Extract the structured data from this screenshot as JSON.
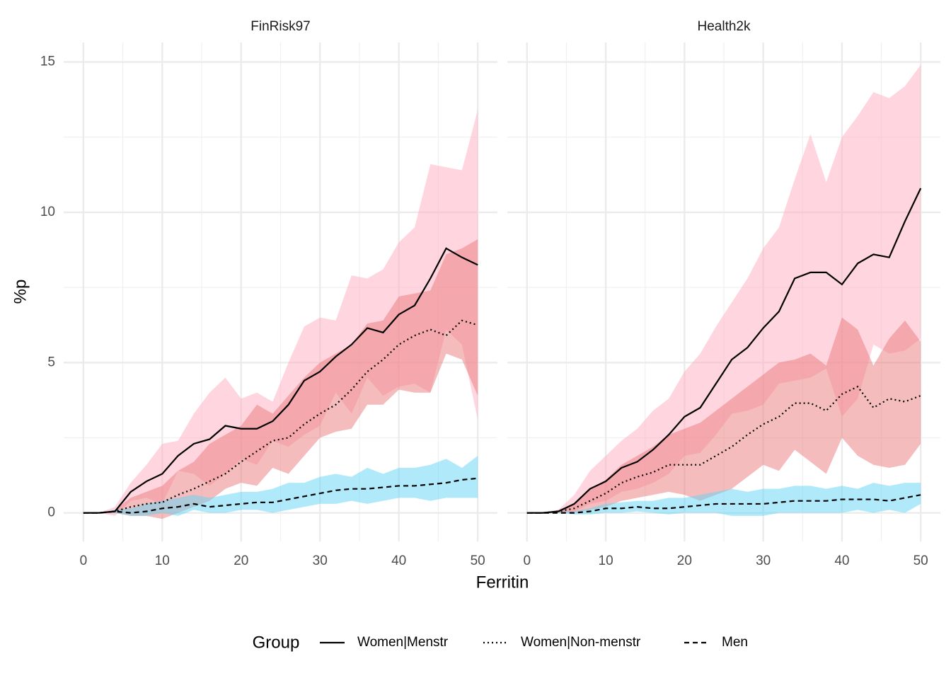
{
  "chart_data": {
    "type": "line",
    "xlabel": "Ferritin",
    "ylabel": "%p",
    "legend_title": "Group",
    "legend_position": "bottom",
    "grid": true,
    "xlim": [
      -2.5,
      52.5
    ],
    "ylim": [
      -0.95,
      15.65
    ],
    "xticks": [
      0,
      10,
      20,
      30,
      40,
      50
    ],
    "yticks": [
      0,
      5,
      10,
      15
    ],
    "xminor": [
      5,
      15,
      25,
      35,
      45
    ],
    "yminor": [
      2.5,
      7.5,
      12.5
    ],
    "x": [
      0,
      2,
      4,
      6,
      8,
      10,
      12,
      14,
      16,
      18,
      20,
      22,
      24,
      26,
      28,
      30,
      32,
      34,
      36,
      38,
      40,
      42,
      44,
      46,
      48,
      50
    ],
    "series": [
      {
        "name": "Women|Menstr",
        "linetype": "solid",
        "color": "#000000",
        "band_color": "#ffabc0"
      },
      {
        "name": "Women|Non-menstr",
        "linetype": "dotted",
        "color": "#000000",
        "band_color": "#e97979"
      },
      {
        "name": "Men",
        "linetype": "dashed",
        "color": "#000000",
        "band_color": "#61d5f5"
      }
    ],
    "panels": [
      {
        "title": "FinRisk97",
        "series": [
          {
            "values": [
              0,
              0,
              0.05,
              0.7,
              1.05,
              1.3,
              1.9,
              2.3,
              2.45,
              2.9,
              2.8,
              2.8,
              3.05,
              3.6,
              4.4,
              4.7,
              5.2,
              5.6,
              6.15,
              6.0,
              6.6,
              6.9,
              7.8,
              8.8,
              8.5,
              8.25
            ],
            "upper": [
              0,
              0,
              0.2,
              1.0,
              1.6,
              2.3,
              2.4,
              3.3,
              4.0,
              4.5,
              3.8,
              4.0,
              3.7,
              5.0,
              6.2,
              6.5,
              6.4,
              7.9,
              7.8,
              8.1,
              9.0,
              9.5,
              11.6,
              11.5,
              11.4,
              13.4
            ],
            "lower": [
              0,
              0,
              -0.1,
              0.4,
              0.5,
              0.3,
              1.4,
              1.3,
              0.9,
              1.3,
              1.8,
              1.6,
              2.4,
              2.2,
              2.6,
              2.9,
              4.0,
              3.3,
              4.5,
              3.9,
              4.2,
              4.3,
              4.0,
              6.1,
              5.6,
              3.1
            ]
          },
          {
            "values": [
              0,
              0,
              0.05,
              0.2,
              0.3,
              0.35,
              0.6,
              0.8,
              1.05,
              1.3,
              1.7,
              2.05,
              2.4,
              2.5,
              2.95,
              3.3,
              3.6,
              4.1,
              4.7,
              5.1,
              5.6,
              5.9,
              6.1,
              5.9,
              6.4,
              6.25
            ],
            "upper": [
              0,
              0,
              0.1,
              0.5,
              0.7,
              0.9,
              1.4,
              1.7,
              2.3,
              2.6,
              2.9,
              3.6,
              3.3,
              3.9,
              4.5,
              5.0,
              5.3,
              5.6,
              6.3,
              6.4,
              7.2,
              7.3,
              7.4,
              8.6,
              8.8,
              9.1
            ],
            "lower": [
              0,
              0,
              0,
              -0.1,
              -0.1,
              -0.2,
              0.0,
              0.2,
              0.4,
              0.8,
              1.0,
              0.9,
              1.5,
              1.3,
              1.9,
              2.5,
              2.7,
              2.8,
              3.6,
              3.6,
              4.1,
              4.0,
              4.0,
              5.3,
              5.1,
              3.9
            ]
          },
          {
            "values": [
              0,
              0,
              0.05,
              0.0,
              0.05,
              0.15,
              0.2,
              0.3,
              0.2,
              0.25,
              0.3,
              0.35,
              0.35,
              0.45,
              0.55,
              0.65,
              0.75,
              0.8,
              0.8,
              0.85,
              0.9,
              0.9,
              0.95,
              1.0,
              1.1,
              1.15
            ],
            "upper": [
              0,
              0,
              0.1,
              0.15,
              0.3,
              0.4,
              0.5,
              0.6,
              0.5,
              0.6,
              0.7,
              0.7,
              0.8,
              1.0,
              1.0,
              1.2,
              1.3,
              1.2,
              1.5,
              1.3,
              1.5,
              1.5,
              1.6,
              1.8,
              1.5,
              1.9
            ],
            "lower": [
              0,
              0,
              0,
              -0.1,
              -0.1,
              0.0,
              -0.1,
              0.1,
              0.0,
              0.0,
              0.1,
              0.1,
              0.0,
              0.1,
              0.2,
              0.3,
              0.3,
              0.4,
              0.3,
              0.4,
              0.5,
              0.5,
              0.4,
              0.5,
              0.5,
              0.5
            ]
          }
        ]
      },
      {
        "title": "Health2k",
        "series": [
          {
            "values": [
              0,
              0,
              0.05,
              0.3,
              0.8,
              1.05,
              1.5,
              1.7,
              2.1,
              2.6,
              3.2,
              3.5,
              4.3,
              5.1,
              5.5,
              6.15,
              6.7,
              7.8,
              8.0,
              8.0,
              7.6,
              8.3,
              8.6,
              8.5,
              9.7,
              10.8
            ],
            "upper": [
              0,
              0,
              0.1,
              0.6,
              1.4,
              1.9,
              2.4,
              2.8,
              3.4,
              3.8,
              4.7,
              5.3,
              6.2,
              7.0,
              7.8,
              8.8,
              9.5,
              11.1,
              12.6,
              11.0,
              12.5,
              13.2,
              14.0,
              13.8,
              14.2,
              14.9
            ],
            "lower": [
              0,
              0,
              0,
              0.05,
              0.3,
              0.4,
              0.7,
              0.8,
              1.0,
              1.3,
              1.9,
              2.0,
              2.6,
              3.3,
              3.4,
              3.6,
              4.3,
              4.4,
              4.5,
              4.8,
              3.2,
              3.8,
              5.6,
              5.3,
              5.4,
              5.8
            ]
          },
          {
            "values": [
              0,
              0,
              0.05,
              0.15,
              0.4,
              0.65,
              1.0,
              1.2,
              1.35,
              1.6,
              1.6,
              1.6,
              1.9,
              2.2,
              2.6,
              2.95,
              3.2,
              3.65,
              3.65,
              3.4,
              3.95,
              4.2,
              3.5,
              3.8,
              3.7,
              3.9
            ],
            "upper": [
              0,
              0,
              0.1,
              0.3,
              0.8,
              1.1,
              1.6,
              1.9,
              2.2,
              2.6,
              2.8,
              3.0,
              3.4,
              3.8,
              4.2,
              4.6,
              5.0,
              5.1,
              5.3,
              4.9,
              6.5,
              6.1,
              4.9,
              5.8,
              6.4,
              5.7
            ],
            "lower": [
              0,
              0,
              0,
              0.0,
              0.1,
              0.2,
              0.4,
              0.5,
              0.6,
              0.7,
              0.6,
              0.4,
              0.6,
              0.8,
              1.2,
              1.6,
              1.4,
              2.1,
              1.7,
              1.3,
              2.5,
              1.9,
              1.6,
              1.5,
              1.6,
              2.3
            ]
          },
          {
            "values": [
              0,
              0,
              0.0,
              0.0,
              0.05,
              0.15,
              0.15,
              0.2,
              0.15,
              0.15,
              0.2,
              0.25,
              0.3,
              0.3,
              0.3,
              0.3,
              0.35,
              0.4,
              0.4,
              0.4,
              0.45,
              0.45,
              0.45,
              0.4,
              0.5,
              0.6
            ],
            "upper": [
              0,
              0,
              0.05,
              0.05,
              0.15,
              0.3,
              0.35,
              0.4,
              0.4,
              0.5,
              0.5,
              0.6,
              0.7,
              0.8,
              0.7,
              0.8,
              0.8,
              0.9,
              0.9,
              0.8,
              0.9,
              0.8,
              1.0,
              0.9,
              1.0,
              1.0
            ],
            "lower": [
              0,
              0,
              0,
              -0.05,
              -0.05,
              0.0,
              0.0,
              0.05,
              0.0,
              -0.05,
              0.0,
              0.0,
              0.0,
              -0.1,
              -0.1,
              -0.1,
              0.0,
              0.0,
              0.0,
              0.0,
              0.0,
              0.1,
              0.0,
              0.1,
              0.0,
              0.3
            ]
          }
        ]
      }
    ]
  }
}
